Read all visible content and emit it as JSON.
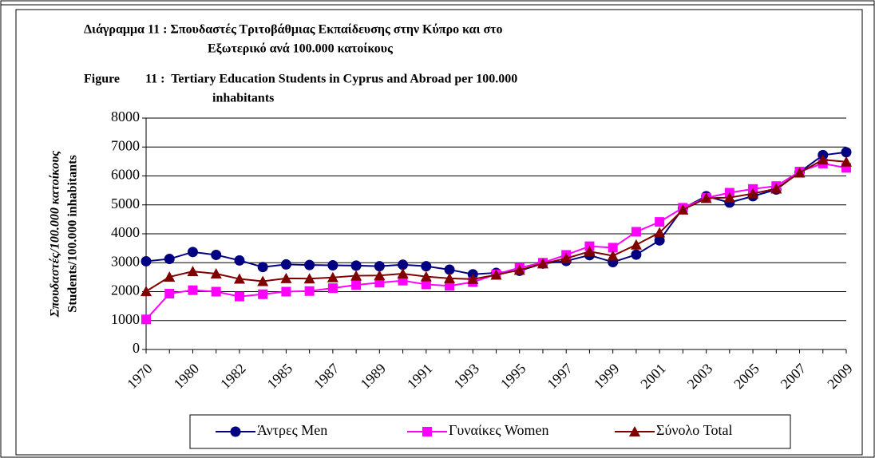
{
  "chart_data": {
    "type": "line",
    "title": [
      "Διάγραμμα 11 :  Σπουδαστές Τριτοβάθμιας Εκπαίδευσης στην Κύπρο και στο",
      "Εξωτερικό  ανά 100.000  κατοίκους",
      "Figure        11 :  Tertiary Education Students in Cyprus and Abroad per 100.000",
      "inhabitants"
    ],
    "ylabel": [
      "Σπουδαστές/100.000 κατοίκους",
      "Students/100.000 inhabitants"
    ],
    "categories": [
      "1970",
      null,
      "1980",
      null,
      "1982",
      null,
      "1985",
      null,
      "1987",
      null,
      "1989",
      null,
      "1991",
      null,
      "1993",
      null,
      "1995",
      null,
      "1997",
      null,
      "1999",
      null,
      "2001",
      null,
      "2003",
      null,
      "2005",
      null,
      "2007",
      null,
      "2009"
    ],
    "series": [
      {
        "name": "Άντρες Men",
        "color": "#000080",
        "marker": "circle",
        "values": [
          3050,
          3130,
          3370,
          3270,
          3080,
          2850,
          2940,
          2920,
          2910,
          2900,
          2880,
          2930,
          2880,
          2760,
          2600,
          2650,
          2720,
          2970,
          3060,
          3260,
          3020,
          3280,
          3770,
          4880,
          5300,
          5080,
          5300,
          5530,
          6130,
          6720,
          6820
        ]
      },
      {
        "name": "Γυναίκες Women",
        "color": "#ff00ff",
        "marker": "square",
        "values": [
          1040,
          1930,
          2050,
          2000,
          1830,
          1910,
          2000,
          2020,
          2120,
          2230,
          2310,
          2380,
          2250,
          2200,
          2330,
          2600,
          2830,
          3000,
          3270,
          3570,
          3520,
          4070,
          4410,
          4900,
          5240,
          5420,
          5550,
          5650,
          6150,
          6430,
          6280
        ]
      },
      {
        "name": "Σύνολο Total",
        "color": "#800000",
        "marker": "triangle",
        "values": [
          2010,
          2510,
          2700,
          2620,
          2440,
          2360,
          2460,
          2450,
          2490,
          2550,
          2560,
          2620,
          2520,
          2460,
          2430,
          2580,
          2750,
          2970,
          3150,
          3390,
          3240,
          3620,
          4040,
          4830,
          5230,
          5250,
          5390,
          5560,
          6110,
          6560,
          6490
        ]
      }
    ],
    "ylim": [
      0,
      8000
    ],
    "yticks": [
      0,
      1000,
      2000,
      3000,
      4000,
      5000,
      6000,
      7000,
      8000
    ],
    "grid": true,
    "legend": "bottom"
  }
}
